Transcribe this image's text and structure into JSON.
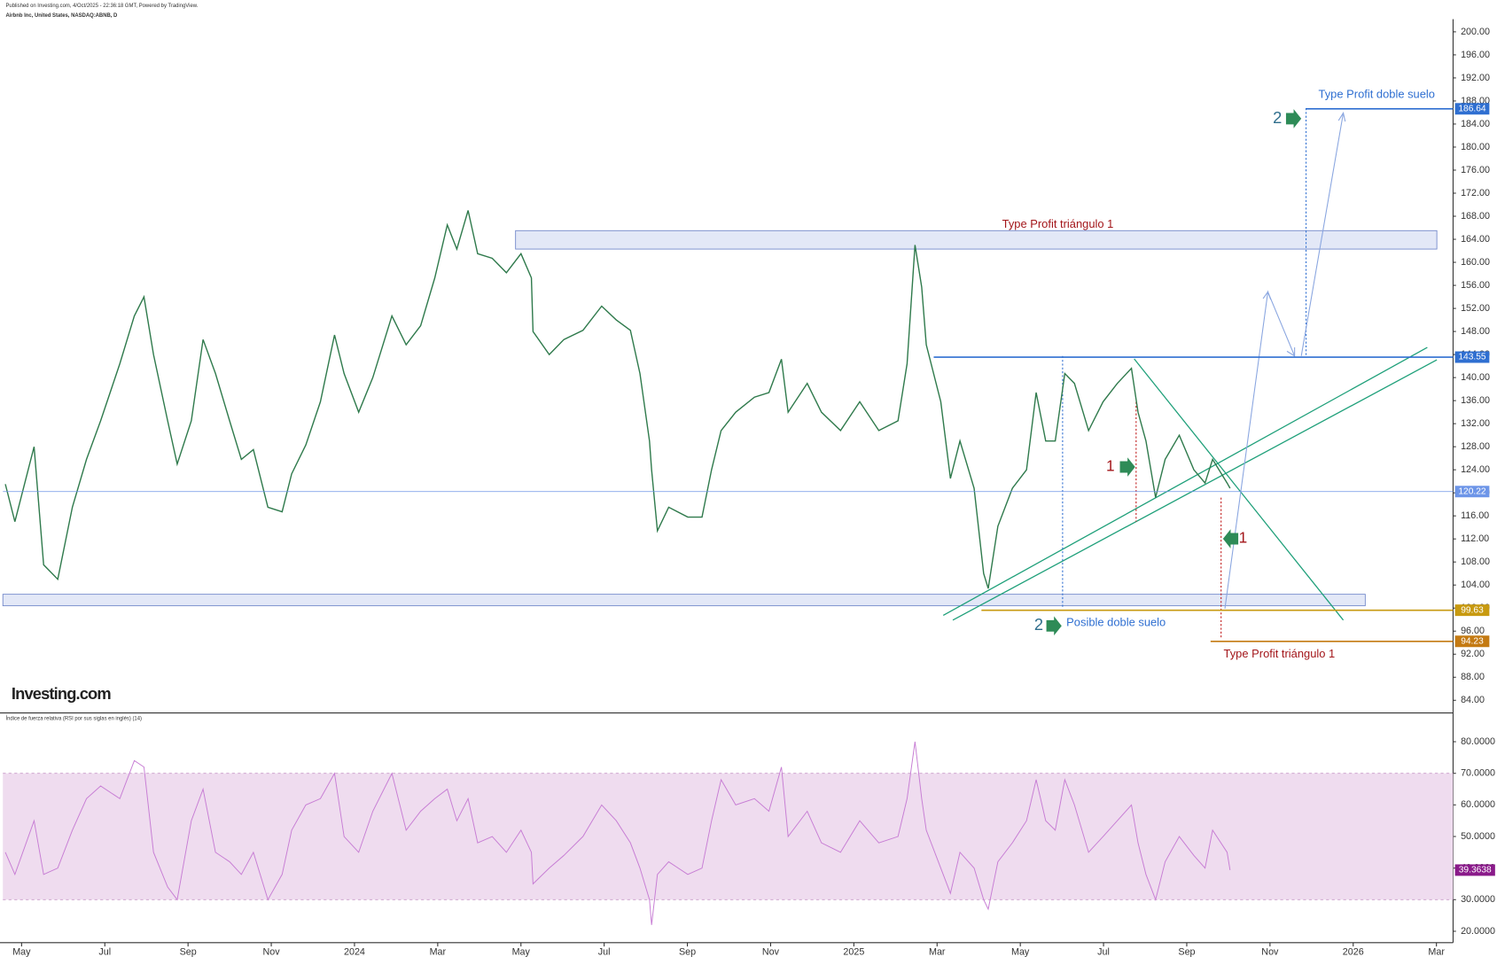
{
  "header": {
    "published": "Published on Investing.com, 4/Oct/2025 - 22:36:18 GMT, Powered by TradingView.",
    "symbol": "Airbnb Inc, United States, NASDAQ:ABNB, D",
    "logo": "Investing.com"
  },
  "chart_data": [
    {
      "type": "line",
      "x": [
        -0.39,
        -0.16,
        0.3,
        0.53,
        0.87,
        1.22,
        1.56,
        1.9,
        2.36,
        2.71,
        2.94,
        3.17,
        3.51,
        3.74,
        4.08,
        4.36,
        4.66,
        5.0,
        5.28,
        5.57,
        5.92,
        6.26,
        6.49,
        6.83,
        7.18,
        7.52,
        7.75,
        8.1,
        8.44,
        8.9,
        9.24,
        9.59,
        9.93,
        10.23,
        10.46,
        10.73,
        10.96,
        11.31,
        11.65,
        12.0,
        12.25,
        12.29,
        12.68,
        13.03,
        13.49,
        13.94,
        14.29,
        14.63,
        14.86,
        15.09,
        15.14,
        15.28,
        15.55,
        16.01,
        16.35,
        16.58,
        16.81,
        17.16,
        17.61,
        17.96,
        18.26,
        18.42,
        18.88,
        19.22,
        19.68,
        20.14,
        20.6,
        21.06,
        21.28,
        21.47,
        21.63,
        21.74,
        22.09,
        22.32,
        22.55,
        22.89,
        23.12,
        23.23,
        23.46,
        23.81,
        24.15,
        24.38,
        24.61,
        24.84,
        25.07,
        25.3,
        25.64,
        25.99,
        26.33,
        26.67,
        26.83,
        27.02,
        27.25,
        27.48,
        27.82,
        28.17,
        28.44,
        28.62,
        28.97,
        29.04
      ],
      "series": [
        {
          "name": "ABNB",
          "color": "#2f7a4c",
          "values": [
            121.5,
            115,
            128,
            107.5,
            105,
            117.5,
            125.8,
            132.5,
            142.4,
            150.7,
            154,
            144,
            132.5,
            125,
            132.5,
            146.6,
            140.7,
            132.5,
            125.8,
            127.5,
            117.5,
            116.7,
            123.3,
            128.3,
            135.8,
            147.4,
            140.7,
            134,
            140,
            150.7,
            145.7,
            149,
            157.3,
            166.5,
            162.3,
            169,
            161.5,
            160.7,
            158.2,
            161.5,
            157.3,
            148,
            144,
            146.6,
            148.2,
            152.4,
            150,
            148.2,
            140.7,
            129,
            124,
            113.4,
            117.5,
            115.8,
            115.8,
            124,
            130.8,
            134,
            136.6,
            137.4,
            143.2,
            134,
            139,
            134,
            130.8,
            135.8,
            130.8,
            132.5,
            142.4,
            163,
            155.7,
            145.7,
            135.8,
            122.5,
            129,
            120.8,
            106,
            103.4,
            114.2,
            120.8,
            124,
            137.4,
            129,
            129,
            140.7,
            139,
            130.8,
            135.8,
            139,
            141.6,
            134,
            129,
            119.2,
            125.8,
            130,
            124,
            121.7,
            125.8,
            121.7,
            120.8
          ]
        }
      ],
      "xlim": [
        -0.45,
        34.4
      ],
      "ylim": [
        81.8,
        202.2
      ],
      "yticks": [
        {
          "value": 84,
          "label": "84.00"
        },
        {
          "value": 88,
          "label": "88.00"
        },
        {
          "value": 92,
          "label": "92.00"
        },
        {
          "value": 96,
          "label": "96.00"
        },
        {
          "value": 100,
          "label": "100.00"
        },
        {
          "value": 104,
          "label": "104.00"
        },
        {
          "value": 108,
          "label": "108.00"
        },
        {
          "value": 112,
          "label": "112.00"
        },
        {
          "value": 116,
          "label": "116.00"
        },
        {
          "value": 120,
          "label": "120.00"
        },
        {
          "value": 124,
          "label": "124.00"
        },
        {
          "value": 128,
          "label": "128.00"
        },
        {
          "value": 132,
          "label": "132.00"
        },
        {
          "value": 136,
          "label": "136.00"
        },
        {
          "value": 140,
          "label": "140.00"
        },
        {
          "value": 144,
          "label": "144.00"
        },
        {
          "value": 148,
          "label": "148.00"
        },
        {
          "value": 152,
          "label": "152.00"
        },
        {
          "value": 156,
          "label": "156.00"
        },
        {
          "value": 160,
          "label": "160.00"
        },
        {
          "value": 164,
          "label": "164.00"
        },
        {
          "value": 168,
          "label": "168.00"
        },
        {
          "value": 172,
          "label": "172.00"
        },
        {
          "value": 176,
          "label": "176.00"
        },
        {
          "value": 180,
          "label": "180.00"
        },
        {
          "value": 184,
          "label": "184.00"
        },
        {
          "value": 188,
          "label": "188.00"
        },
        {
          "value": 192,
          "label": "192.00"
        },
        {
          "value": 196,
          "label": "196.00"
        },
        {
          "value": 200,
          "label": "200.00"
        }
      ],
      "levels": [
        {
          "value": 186.64,
          "color": "#2f6fd1"
        },
        {
          "value": 143.55,
          "color": "#2f6fd1"
        },
        {
          "value": 120.22,
          "color": "#6d95e8"
        },
        {
          "value": 99.63,
          "color": "#c89a10"
        },
        {
          "value": 94.23,
          "color": "#c47a12"
        }
      ],
      "zones": [
        {
          "low": 162.3,
          "high": 165.5
        },
        {
          "low": 100.4,
          "high": 102.4
        }
      ],
      "annotations": [
        {
          "text": "Type Profit triángulo 1",
          "color": "#a3161a"
        },
        {
          "text": "Type Profit doble suelo",
          "color": "#2f6fd1"
        },
        {
          "text": "Posible doble suelo",
          "color": "#2f6fd1"
        },
        {
          "text": "Type Profit triángulo 1",
          "color": "#a3161a"
        },
        {
          "text": "2",
          "color": "#2f6e8c"
        },
        {
          "text": "1",
          "color": "#a3161a"
        },
        {
          "text": "1",
          "color": "#a3161a"
        },
        {
          "text": "2",
          "color": "#2f6e8c"
        }
      ]
    },
    {
      "type": "line",
      "title": "Índice de fuerza relativa (RSI por sus siglas en inglés) (14)",
      "x": [
        -0.39,
        -0.16,
        0.3,
        0.53,
        0.87,
        1.22,
        1.56,
        1.9,
        2.36,
        2.71,
        2.94,
        3.17,
        3.51,
        3.74,
        4.08,
        4.36,
        4.66,
        5.0,
        5.28,
        5.57,
        5.92,
        6.26,
        6.49,
        6.83,
        7.18,
        7.52,
        7.75,
        8.1,
        8.44,
        8.9,
        9.24,
        9.59,
        9.93,
        10.23,
        10.46,
        10.73,
        10.96,
        11.31,
        11.65,
        12.0,
        12.25,
        12.29,
        12.68,
        13.03,
        13.49,
        13.94,
        14.29,
        14.63,
        14.86,
        15.09,
        15.14,
        15.28,
        15.55,
        16.01,
        16.35,
        16.58,
        16.81,
        17.16,
        17.61,
        17.96,
        18.26,
        18.42,
        18.88,
        19.22,
        19.68,
        20.14,
        20.6,
        21.06,
        21.28,
        21.47,
        21.63,
        21.74,
        22.09,
        22.32,
        22.55,
        22.89,
        23.12,
        23.23,
        23.46,
        23.81,
        24.15,
        24.38,
        24.61,
        24.84,
        25.07,
        25.3,
        25.64,
        25.99,
        26.33,
        26.67,
        26.83,
        27.02,
        27.25,
        27.48,
        27.82,
        28.17,
        28.44,
        28.62,
        28.97,
        29.04
      ],
      "series": [
        {
          "name": "RSI",
          "color": "#c77dd4",
          "values": [
            45,
            38,
            55,
            38,
            40,
            52,
            62,
            66,
            62,
            74,
            72,
            45,
            34,
            30,
            55,
            65,
            45,
            42,
            38,
            45,
            30,
            38,
            52,
            60,
            62,
            70,
            50,
            45,
            58,
            70,
            52,
            58,
            62,
            65,
            55,
            62,
            48,
            50,
            45,
            52,
            45,
            35,
            40,
            44,
            50,
            60,
            55,
            48,
            40,
            30,
            22,
            38,
            42,
            38,
            40,
            55,
            68,
            60,
            62,
            58,
            72,
            50,
            58,
            48,
            45,
            55,
            48,
            50,
            62,
            80,
            62,
            52,
            40,
            32,
            45,
            40,
            30,
            27,
            42,
            48,
            55,
            68,
            55,
            52,
            68,
            60,
            45,
            50,
            55,
            60,
            48,
            38,
            30,
            42,
            50,
            44,
            40,
            52,
            45,
            39.3638
          ]
        }
      ],
      "last_label": "39.3638",
      "band": [
        30,
        70
      ],
      "band_color": "#efdcef",
      "xlim": [
        -0.45,
        34.4
      ],
      "ylim": [
        16.4,
        89.1
      ],
      "yticks": [
        {
          "value": 20,
          "label": "20.0000"
        },
        {
          "value": 30,
          "label": "30.0000"
        },
        {
          "value": 40,
          "label": "40.0000"
        },
        {
          "value": 50,
          "label": "50.0000"
        },
        {
          "value": 60,
          "label": "60.0000"
        },
        {
          "value": 70,
          "label": "70.0000"
        },
        {
          "value": 80,
          "label": "80.0000"
        }
      ],
      "xticks": [
        {
          "value": 0,
          "label": "May"
        },
        {
          "value": 2,
          "label": "Jul"
        },
        {
          "value": 4,
          "label": "Sep"
        },
        {
          "value": 6,
          "label": "Nov"
        },
        {
          "value": 8,
          "label": "2024"
        },
        {
          "value": 10,
          "label": "Mar"
        },
        {
          "value": 12,
          "label": "May"
        },
        {
          "value": 14,
          "label": "Jul"
        },
        {
          "value": 16,
          "label": "Sep"
        },
        {
          "value": 18,
          "label": "Nov"
        },
        {
          "value": 20,
          "label": "2025"
        },
        {
          "value": 22,
          "label": "Mar"
        },
        {
          "value": 24,
          "label": "May"
        },
        {
          "value": 26,
          "label": "Jul"
        },
        {
          "value": 28,
          "label": "Sep"
        },
        {
          "value": 30,
          "label": "Nov"
        },
        {
          "value": 32,
          "label": "2026"
        },
        {
          "value": 34,
          "label": "Mar"
        }
      ]
    }
  ]
}
